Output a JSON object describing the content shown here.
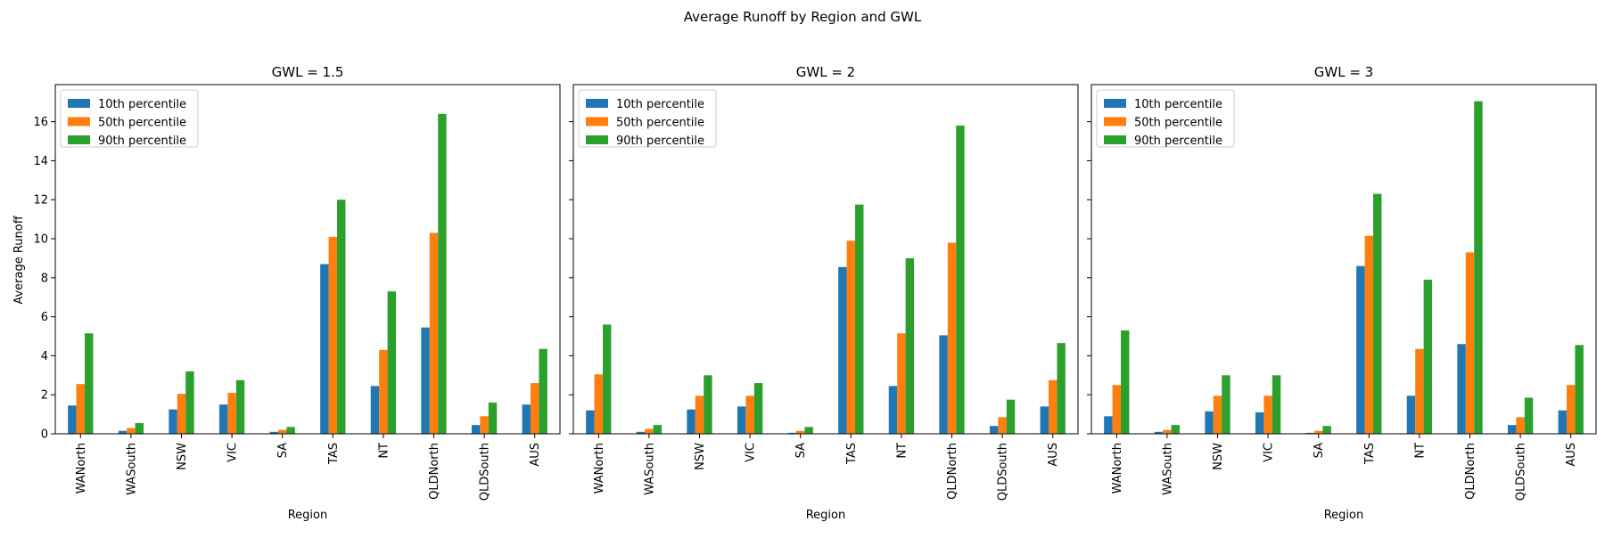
{
  "figure": {
    "suptitle": "Average Runoff by Region and GWL"
  },
  "chart_data": {
    "type": "bar",
    "shared_y": true,
    "ylabel": "Average Runoff",
    "xlabel": "Region",
    "ylim": [
      0,
      17.9
    ],
    "yticks": [
      0,
      2,
      4,
      6,
      8,
      10,
      12,
      14,
      16
    ],
    "legend_placement": "top-left",
    "categories": [
      "WANorth",
      "WASouth",
      "NSW",
      "VIC",
      "SA",
      "TAS",
      "NT",
      "QLDNorth",
      "QLDSouth",
      "AUS"
    ],
    "series_names": [
      "10th percentile",
      "50th percentile",
      "90th percentile"
    ],
    "series_colors": [
      "#1f77b4",
      "#ff7f0e",
      "#2ca02c"
    ],
    "panels": [
      {
        "title": "GWL = 1.5",
        "series": [
          {
            "name": "10th percentile",
            "values": [
              1.45,
              0.15,
              1.25,
              1.5,
              0.1,
              8.7,
              2.45,
              5.45,
              0.45,
              1.5
            ]
          },
          {
            "name": "50th percentile",
            "values": [
              2.55,
              0.3,
              2.05,
              2.1,
              0.2,
              10.1,
              4.3,
              10.3,
              0.9,
              2.6
            ]
          },
          {
            "name": "90th percentile",
            "values": [
              5.15,
              0.55,
              3.2,
              2.75,
              0.35,
              12.0,
              7.3,
              16.4,
              1.6,
              4.35
            ]
          }
        ]
      },
      {
        "title": "GWL = 2",
        "series": [
          {
            "name": "10th percentile",
            "values": [
              1.2,
              0.1,
              1.25,
              1.4,
              0.05,
              8.55,
              2.45,
              5.05,
              0.4,
              1.4
            ]
          },
          {
            "name": "50th percentile",
            "values": [
              3.05,
              0.25,
              1.95,
              1.95,
              0.15,
              9.9,
              5.15,
              9.8,
              0.85,
              2.75
            ]
          },
          {
            "name": "90th percentile",
            "values": [
              5.6,
              0.45,
              3.0,
              2.6,
              0.35,
              11.75,
              9.0,
              15.8,
              1.75,
              4.65
            ]
          }
        ]
      },
      {
        "title": "GWL = 3",
        "series": [
          {
            "name": "10th percentile",
            "values": [
              0.9,
              0.1,
              1.15,
              1.1,
              0.05,
              8.6,
              1.95,
              4.6,
              0.45,
              1.2
            ]
          },
          {
            "name": "50th percentile",
            "values": [
              2.5,
              0.2,
              1.95,
              1.95,
              0.15,
              10.15,
              4.35,
              9.3,
              0.85,
              2.5
            ]
          },
          {
            "name": "90th percentile",
            "values": [
              5.3,
              0.45,
              3.0,
              3.0,
              0.4,
              12.3,
              7.9,
              17.05,
              1.85,
              4.55
            ]
          }
        ]
      }
    ]
  }
}
